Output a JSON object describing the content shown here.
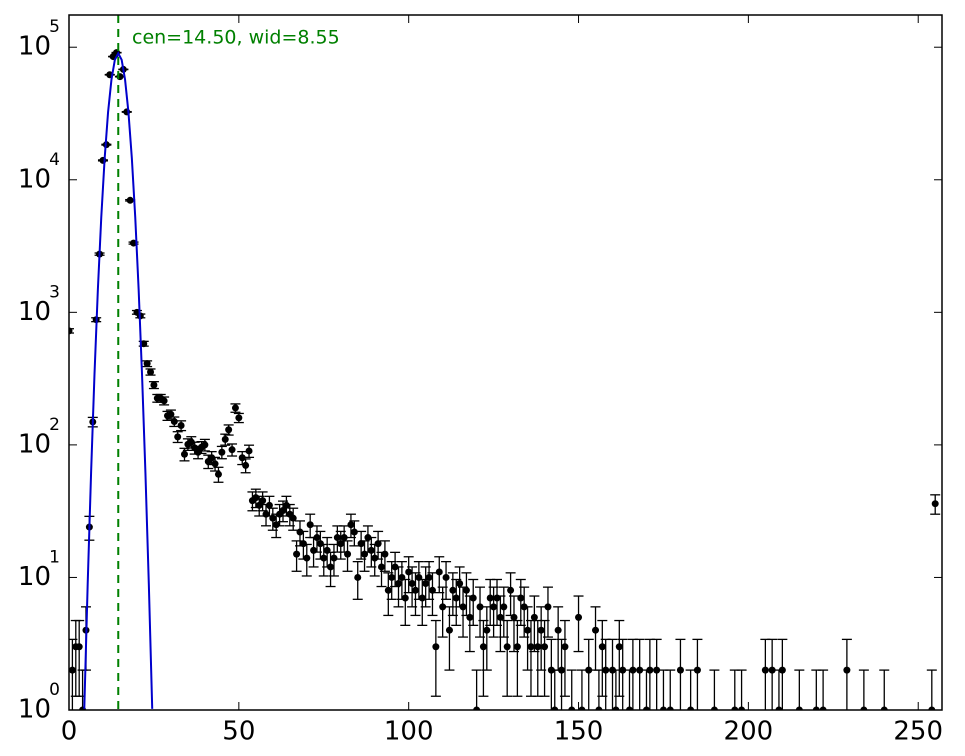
{
  "chart_data": {
    "type": "errorbar",
    "annotation": "cen=14.50, wid=8.55",
    "marker_line": 14.5,
    "marker_line_color": "#008000",
    "xlim": [
      0,
      257
    ],
    "xticks": [
      0,
      50,
      100,
      150,
      200,
      250
    ],
    "ylim": [
      1,
      175000
    ],
    "yscale": "log",
    "yticks": [
      {
        "value": 1,
        "label": "10",
        "exponent": "0"
      },
      {
        "value": 10,
        "label": "10",
        "exponent": "1"
      },
      {
        "value": 100,
        "label": "10",
        "exponent": "2"
      },
      {
        "value": 1000,
        "label": "10",
        "exponent": "3"
      },
      {
        "value": 10000,
        "label": "10",
        "exponent": "4"
      },
      {
        "value": 100000,
        "label": "10",
        "exponent": "5"
      }
    ],
    "series": [
      {
        "kind": "points",
        "color": "#000000",
        "x": [
          0,
          1,
          2,
          3,
          4,
          5,
          6,
          7,
          8,
          9,
          10,
          11,
          12,
          13,
          14,
          15,
          16,
          17,
          18,
          19,
          20,
          21,
          22,
          23,
          24,
          25,
          26,
          27,
          28,
          29,
          30,
          31,
          32,
          33,
          34,
          35,
          36,
          37,
          38,
          39,
          40,
          41,
          42,
          43,
          44,
          45,
          46,
          47,
          48,
          49,
          50,
          51,
          52,
          53,
          54,
          55,
          56,
          57,
          58,
          59,
          60,
          61,
          62,
          63,
          64,
          65,
          66,
          67,
          68,
          69,
          70,
          71,
          72,
          73,
          74,
          75,
          76,
          77,
          78,
          79,
          80,
          81,
          82,
          83,
          84,
          85,
          86,
          87,
          88,
          89,
          90,
          91,
          92,
          93,
          94,
          95,
          96,
          97,
          98,
          99,
          100,
          101,
          102,
          103,
          104,
          105,
          106,
          107,
          108,
          109,
          110,
          111,
          112,
          113,
          114,
          115,
          116,
          117,
          118,
          119,
          120,
          121,
          122,
          123,
          124,
          125,
          126,
          127,
          128,
          129,
          130,
          131,
          132,
          133,
          134,
          135,
          136,
          137,
          138,
          139,
          140,
          141,
          142,
          143,
          144,
          145,
          146,
          148,
          150,
          151,
          153,
          155,
          156,
          157,
          158,
          160,
          161,
          162,
          163,
          165,
          166,
          168,
          170,
          171,
          173,
          175,
          177,
          180,
          183,
          185,
          190,
          196,
          198,
          205,
          207,
          209,
          210,
          215,
          220,
          222,
          229,
          234,
          240,
          254,
          255
        ],
        "values": [
          725,
          2,
          3,
          3,
          1,
          4,
          24,
          149,
          880,
          2750,
          14000,
          18400,
          62000,
          85000,
          91000,
          60000,
          68000,
          32500,
          7000,
          3330,
          1000,
          940,
          580,
          410,
          355,
          283,
          225,
          225,
          215,
          166,
          170,
          150,
          115,
          140,
          85,
          101,
          105,
          95,
          88,
          96,
          100,
          75,
          80,
          72,
          60,
          88,
          110,
          130,
          92,
          190,
          160,
          80,
          70,
          90,
          38,
          40,
          35,
          38,
          30,
          35,
          28,
          25,
          30,
          32,
          35,
          30,
          28,
          15,
          22,
          18,
          14,
          25,
          16,
          20,
          18,
          14,
          16,
          12,
          14,
          20,
          18,
          20,
          15,
          25,
          22,
          10,
          18,
          15,
          20,
          16,
          14,
          18,
          12,
          15,
          8,
          10,
          12,
          9,
          10,
          7,
          11,
          9,
          8,
          10,
          7,
          9,
          10,
          8,
          3,
          11,
          6,
          10,
          4,
          8,
          7,
          9,
          6,
          8,
          5,
          7,
          1,
          6,
          3,
          4,
          7,
          6,
          7,
          5,
          6,
          3,
          8,
          5,
          3,
          7,
          6,
          4,
          3,
          5,
          3,
          4,
          3,
          6,
          2,
          1,
          4,
          2,
          3,
          1,
          5,
          1,
          2,
          4,
          1,
          3,
          2,
          2,
          1,
          3,
          2,
          1,
          2,
          2,
          1,
          2,
          2,
          1,
          1,
          2,
          1,
          2,
          1,
          1,
          1,
          2,
          2,
          1,
          2,
          1,
          1,
          1,
          2,
          1,
          1,
          1,
          36
        ],
        "errors": [
          26.93,
          1.41,
          1.73,
          1.73,
          1,
          2,
          4.9,
          12.21,
          29.66,
          52.44,
          118.3,
          135.6,
          249,
          291.5,
          301.7,
          244.9,
          260.8,
          180.3,
          83.67,
          57.71,
          31.62,
          30.66,
          24.08,
          20.25,
          18.84,
          16.82,
          15,
          15,
          14.66,
          12.88,
          13.04,
          12.25,
          10.72,
          11.83,
          9.22,
          10.05,
          10.25,
          9.75,
          9.38,
          9.8,
          10,
          8.66,
          8.94,
          8.49,
          7.75,
          9.38,
          10.49,
          11.4,
          9.59,
          13.78,
          12.65,
          8.94,
          8.37,
          9.49,
          6.16,
          6.32,
          5.92,
          6.16,
          5.48,
          5.92,
          5.29,
          5,
          5.48,
          5.66,
          5.92,
          5.48,
          5.29,
          3.87,
          4.69,
          4.24,
          3.74,
          5,
          4,
          4.47,
          4.24,
          3.74,
          4,
          3.46,
          3.74,
          4.47,
          4.24,
          4.47,
          3.87,
          5,
          4.69,
          3.16,
          4.24,
          3.87,
          4.47,
          4,
          3.74,
          4.24,
          3.46,
          3.87,
          2.83,
          3.16,
          3.46,
          3,
          3.16,
          2.65,
          3.32,
          3,
          2.83,
          3.16,
          2.65,
          3,
          3.16,
          2.83,
          1.73,
          3.32,
          2.45,
          3.16,
          2,
          2.83,
          2.65,
          3,
          2.45,
          2.83,
          2.24,
          2.65,
          1,
          2.45,
          1.73,
          2,
          2.65,
          2.45,
          2.65,
          2.24,
          2.45,
          1.73,
          2.83,
          2.24,
          1.73,
          2.65,
          2.45,
          2,
          1.73,
          2.24,
          1.73,
          2,
          1.73,
          2.45,
          1.41,
          1,
          2,
          1.41,
          1.73,
          1,
          2.24,
          1,
          1.41,
          2,
          1,
          1.73,
          1.41,
          1.41,
          1,
          1.73,
          1.41,
          1,
          1.41,
          1.41,
          1,
          1.41,
          1.41,
          1,
          1,
          1.41,
          1,
          1.41,
          1,
          1,
          1,
          1.41,
          1.41,
          1,
          1.41,
          1,
          1,
          1,
          1.41,
          1,
          1,
          1,
          6
        ]
      },
      {
        "kind": "fit",
        "color": "#0000cc",
        "x": [
          4.5,
          5.5,
          6.5,
          7.5,
          8.5,
          9.5,
          10.5,
          11.5,
          12.5,
          13.5,
          14.5,
          15.5,
          16.5,
          17.5,
          18.5,
          19.5,
          20.5,
          21.5,
          22.5,
          23.5,
          24.5
        ],
        "values": [
          1.02,
          8.9,
          61.5,
          339,
          1490,
          5220,
          14550,
          32300,
          57100,
          80300,
          90000,
          80300,
          57100,
          32300,
          14550,
          5220,
          1490,
          339,
          61.5,
          8.9,
          1.02
        ]
      }
    ]
  }
}
